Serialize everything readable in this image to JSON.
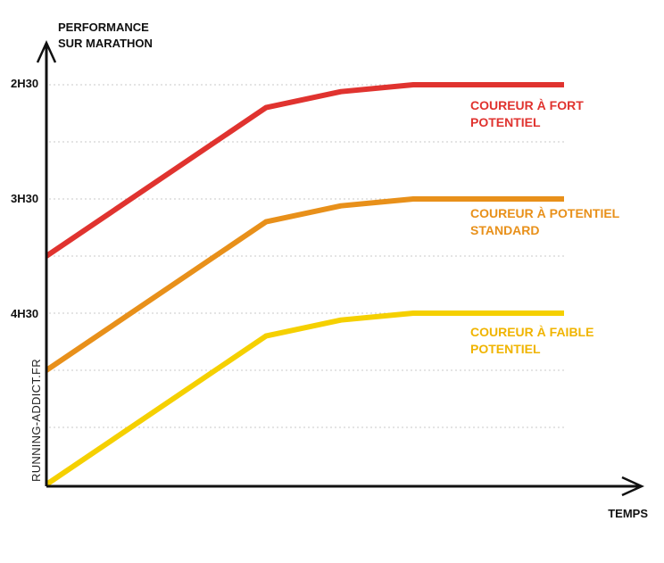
{
  "chart_data": {
    "type": "line",
    "ylabel_lines": [
      "PERFORMANCE",
      "SUR MARATHON"
    ],
    "xlabel": "TEMPS",
    "y_ticks": [
      "2H30",
      "3H30",
      "4H30"
    ],
    "y_axis_order": "inverted",
    "grid": "dashed-horizontal",
    "watermark": "RUNNING-ADDICT.FR",
    "x": [
      0,
      1,
      2,
      3,
      4
    ],
    "series": [
      {
        "name_lines": [
          "COUREUR À FORT",
          "POTENTIEL"
        ],
        "color": "#e0332f",
        "values": [
          4.0,
          2.7,
          2.56,
          2.5,
          2.5
        ]
      },
      {
        "name_lines": [
          "COUREUR À POTENTIEL",
          "STANDARD"
        ],
        "color": "#e8901a",
        "values": [
          5.0,
          3.7,
          3.56,
          3.5,
          3.5
        ]
      },
      {
        "name_lines": [
          "COUREUR À FAIBLE",
          "POTENTIEL"
        ],
        "color": "#f5d000",
        "values": [
          6.0,
          4.7,
          4.56,
          4.5,
          4.5
        ]
      }
    ]
  }
}
